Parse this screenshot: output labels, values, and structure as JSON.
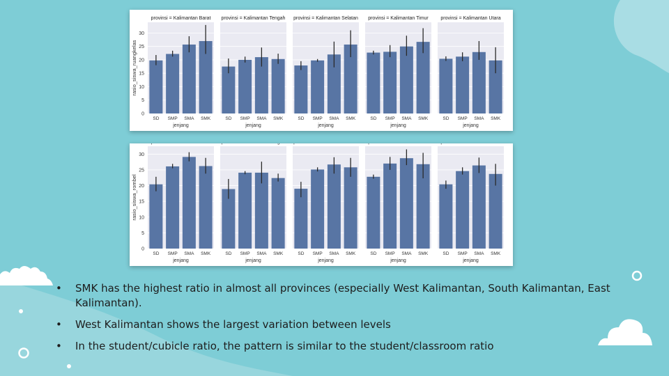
{
  "theme": {
    "background": "#7ecdd6",
    "bar_color": "#5875a4",
    "panel_bg": "#eaeaf2",
    "error_color": "#2a2a2a"
  },
  "chart_data": [
    {
      "type": "bar",
      "ylabel": "rasio_siswa_ruangkelas",
      "xlabel": "jenjang",
      "categories": [
        "SD",
        "SMP",
        "SMA",
        "SMK"
      ],
      "yticks": [
        0,
        5,
        10,
        15,
        20,
        25,
        30
      ],
      "ylim": [
        0,
        34
      ],
      "facets": [
        {
          "title": "provinsi = Kalimantan Barat",
          "values": [
            19.8,
            22.2,
            25.7,
            27.0
          ],
          "err_low": [
            18.0,
            21.2,
            22.8,
            22.2
          ],
          "err_high": [
            21.8,
            23.4,
            28.8,
            33.0
          ]
        },
        {
          "title": "provinsi = Kalimantan Tengah",
          "values": [
            17.5,
            20.0,
            21.0,
            20.3
          ],
          "err_low": [
            15.0,
            19.0,
            17.5,
            18.5
          ],
          "err_high": [
            20.5,
            21.2,
            24.6,
            22.3
          ]
        },
        {
          "title": "provinsi = Kalimantan Selatan",
          "values": [
            17.9,
            19.8,
            22.0,
            25.7
          ],
          "err_low": [
            16.2,
            19.3,
            17.2,
            21.0
          ],
          "err_high": [
            19.5,
            20.3,
            26.8,
            31.0
          ]
        },
        {
          "title": "provinsi = Kalimantan Timur",
          "values": [
            22.7,
            23.0,
            25.0,
            26.7
          ],
          "err_low": [
            22.0,
            21.0,
            21.5,
            22.5
          ],
          "err_high": [
            23.4,
            25.5,
            29.0,
            31.8
          ]
        },
        {
          "title": "provinsi = Kalimantan Utara",
          "values": [
            20.4,
            21.2,
            22.9,
            19.8
          ],
          "err_low": [
            19.6,
            19.5,
            20.0,
            15.0
          ],
          "err_high": [
            21.3,
            22.8,
            27.0,
            24.7
          ]
        }
      ]
    },
    {
      "type": "bar",
      "ylabel": "rasio_siswa_rombel",
      "xlabel": "jenjang",
      "categories": [
        "SD",
        "SMP",
        "SMA",
        "SMK"
      ],
      "yticks": [
        0,
        5,
        10,
        15,
        20,
        25,
        30
      ],
      "ylim": [
        0,
        32.5
      ],
      "facets": [
        {
          "title": "provinsi = Kalimantan Barat",
          "values": [
            20.4,
            26.1,
            29.1,
            26.2
          ],
          "err_low": [
            18.2,
            25.5,
            27.7,
            23.8
          ],
          "err_high": [
            22.8,
            26.9,
            30.6,
            28.8
          ]
        },
        {
          "title": "provinsi = Kalimantan Tengah",
          "values": [
            18.9,
            24.1,
            24.1,
            22.4
          ],
          "err_low": [
            15.8,
            23.6,
            20.7,
            21.3
          ],
          "err_high": [
            22.1,
            24.6,
            27.6,
            23.8
          ]
        },
        {
          "title": "provinsi = Kalimantan Selatan",
          "values": [
            19.0,
            25.1,
            26.7,
            25.8
          ],
          "err_low": [
            16.3,
            24.5,
            23.8,
            22.8
          ],
          "err_high": [
            21.2,
            25.8,
            29.0,
            28.8
          ]
        },
        {
          "title": "provinsi = Kalimantan Timur",
          "values": [
            22.8,
            27.0,
            28.7,
            26.8
          ],
          "err_low": [
            22.2,
            25.0,
            26.5,
            22.3
          ],
          "err_high": [
            23.5,
            29.1,
            31.5,
            30.4
          ]
        },
        {
          "title": "provinsi = Kalimantan Utara",
          "values": [
            20.4,
            24.6,
            26.4,
            23.7
          ],
          "err_low": [
            19.0,
            23.5,
            24.0,
            20.0
          ],
          "err_high": [
            21.6,
            25.8,
            28.9,
            26.9
          ]
        }
      ]
    }
  ],
  "bullets": [
    {
      "text": "SMK has the highest ratio in almost all provinces (especially West Kalimantan, South Kalimantan, East Kalimantan)."
    },
    {
      "text": "West Kalimantan shows the largest variation between levels"
    },
    {
      "text": "In the student/cubicle ratio, the pattern is similar to the student/classroom ratio"
    }
  ],
  "bullet_glyph": "•"
}
